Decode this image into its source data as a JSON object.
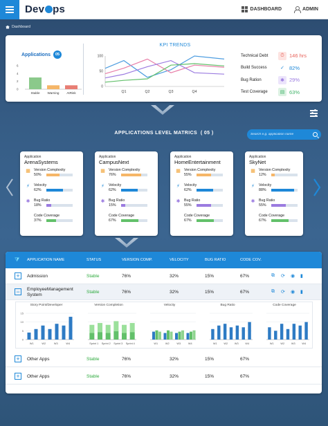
{
  "brand": {
    "name_part1": "Dev",
    "name_part2": "ps"
  },
  "topnav": {
    "dashboard": "DASHBOARD",
    "admin": "ADMIN"
  },
  "breadcrumb": "Dashboard",
  "applications_summary": {
    "title": "Applications",
    "count": "05",
    "yticks": [
      "6",
      "4",
      "2",
      "0"
    ],
    "categories": [
      "Stable",
      "Warning",
      "AtRisk"
    ],
    "values": [
      3,
      1,
      1
    ],
    "colors": [
      "#8bc98b",
      "#f5b668",
      "#e87e74"
    ]
  },
  "kpi_trends": {
    "title": "KPI TRENDS",
    "categories": [
      "Q1",
      "Q2",
      "Q3",
      "Q4"
    ],
    "yticks": [
      "100",
      "50",
      "0"
    ],
    "series": [
      {
        "values": [
          85,
          30,
          55,
          100
        ],
        "color": "#4d9de0"
      },
      {
        "values": [
          60,
          90,
          45,
          70
        ],
        "color": "#e87ea8"
      },
      {
        "values": [
          40,
          65,
          85,
          45
        ],
        "color": "#9b7be0"
      },
      {
        "values": [
          20,
          25,
          70,
          75
        ],
        "color": "#62c06a"
      }
    ]
  },
  "kpi_metrics": [
    {
      "label": "Technical Debt",
      "value": "146 hrs",
      "color": "#e8625a",
      "icon": "debt-icon",
      "glyph": "⏱",
      "bg": "#fde3e1"
    },
    {
      "label": "Build Success",
      "value": "82%",
      "color": "#1e88d8",
      "icon": "check-icon",
      "glyph": "✓",
      "bg": "#ffffff"
    },
    {
      "label": "Bug Ration",
      "value": "29%",
      "color": "#9b7be0",
      "icon": "bug-icon",
      "glyph": "✱",
      "bg": "#ece4fb"
    },
    {
      "label": "Test Coverage",
      "value": "63%",
      "color": "#41b36a",
      "icon": "coverage-icon",
      "glyph": "▤",
      "bg": "#ddf2e3"
    }
  ],
  "section_title": "APPLICATIONS LEVEL MATRICS",
  "section_count": "( 05 )",
  "search": {
    "placeholder": "Search e.g. application name"
  },
  "app_cards": [
    {
      "label": "Application",
      "name": "ArenaSystems",
      "metrics": [
        {
          "label": "Version Complexity",
          "value": "50%",
          "pct": 50,
          "color": "#f5b668",
          "icon": "calendar-icon",
          "glyph": "▦",
          "icolor": "#f0a030"
        },
        {
          "label": "Velocity",
          "value": "62%",
          "pct": 62,
          "color": "#1e88d8",
          "icon": "bolt-icon",
          "glyph": "⚡",
          "icolor": "#1e88d8"
        },
        {
          "label": "Bug Ratio",
          "value": "18%",
          "pct": 18,
          "color": "#9b7be0",
          "icon": "bug-icon",
          "glyph": "✱",
          "icolor": "#9b7be0"
        },
        {
          "label": "Code Coverage",
          "value": "37%",
          "pct": 37,
          "color": "#62c06a",
          "icon": "code-icon",
          "glyph": "</>",
          "icolor": "#41b36a"
        }
      ]
    },
    {
      "label": "Application",
      "name": "CampusNext",
      "metrics": [
        {
          "label": "Version Complexity",
          "value": "76%",
          "pct": 76,
          "color": "#f5b668",
          "icon": "calendar-icon",
          "glyph": "▦",
          "icolor": "#f0a030"
        },
        {
          "label": "Velocity",
          "value": "62%",
          "pct": 62,
          "color": "#1e88d8",
          "icon": "bolt-icon",
          "glyph": "⚡",
          "icolor": "#1e88d8"
        },
        {
          "label": "Bug Ratio",
          "value": "15%",
          "pct": 15,
          "color": "#9b7be0",
          "icon": "bug-icon",
          "glyph": "✱",
          "icolor": "#9b7be0"
        },
        {
          "label": "Code Coverage",
          "value": "67%",
          "pct": 67,
          "color": "#62c06a",
          "icon": "code-icon",
          "glyph": "</>",
          "icolor": "#41b36a"
        }
      ]
    },
    {
      "label": "Application",
      "name": "HomeEntertainment",
      "metrics": [
        {
          "label": "Version Complexity",
          "value": "55%",
          "pct": 55,
          "color": "#f5b668",
          "icon": "calendar-icon",
          "glyph": "▦",
          "icolor": "#f0a030"
        },
        {
          "label": "Velocity",
          "value": "62%",
          "pct": 62,
          "color": "#1e88d8",
          "icon": "bolt-icon",
          "glyph": "⚡",
          "icolor": "#1e88d8"
        },
        {
          "label": "Bug Ratio",
          "value": "55%",
          "pct": 55,
          "color": "#9b7be0",
          "icon": "bug-icon",
          "glyph": "✱",
          "icolor": "#9b7be0"
        },
        {
          "label": "Code Coverage",
          "value": "67%",
          "pct": 67,
          "color": "#62c06a",
          "icon": "code-icon",
          "glyph": "</>",
          "icolor": "#41b36a"
        }
      ]
    },
    {
      "label": "Application",
      "name": "SkyNet",
      "metrics": [
        {
          "label": "Version Complexity",
          "value": "12%",
          "pct": 12,
          "color": "#f5b668",
          "icon": "calendar-icon",
          "glyph": "▦",
          "icolor": "#f0a030"
        },
        {
          "label": "Velocity",
          "value": "88%",
          "pct": 88,
          "color": "#1e88d8",
          "icon": "bolt-icon",
          "glyph": "⚡",
          "icolor": "#1e88d8"
        },
        {
          "label": "Bug Ratio",
          "value": "55%",
          "pct": 55,
          "color": "#9b7be0",
          "icon": "bug-icon",
          "glyph": "✱",
          "icolor": "#9b7be0"
        },
        {
          "label": "Code Coverage",
          "value": "67%",
          "pct": 67,
          "color": "#62c06a",
          "icon": "code-icon",
          "glyph": "</>",
          "icolor": "#41b36a"
        }
      ]
    }
  ],
  "table": {
    "headers": [
      "APPLICATION NAME",
      "STATUS",
      "VERSION COMP.",
      "VELOCITY",
      "BUG RATIO",
      "CODE COV."
    ],
    "rows": [
      {
        "toggle": "+",
        "name": "Admission",
        "status": "Stable",
        "version": "76%",
        "velocity": "32%",
        "bug": "15%",
        "coverage": "67%"
      },
      {
        "toggle": "−",
        "name": "EmployeeManagement",
        "name2": "System",
        "status": "Stable",
        "version": "76%",
        "velocity": "32%",
        "bug": "15%",
        "coverage": "67%"
      },
      {
        "toggle": "+",
        "name": "Other Apps",
        "status": "Stable",
        "version": "76%",
        "velocity": "32%",
        "bug": "15%",
        "coverage": "67%"
      },
      {
        "toggle": "+",
        "name": "Other Apps",
        "status": "Stable",
        "version": "76%",
        "velocity": "32%",
        "bug": "15%",
        "coverage": "67%"
      }
    ],
    "sub_charts": [
      {
        "title": "Story Point/Developer",
        "type": "bar",
        "yticks": [
          "15",
          "10",
          "5",
          "0"
        ],
        "xlabels": [
          "W1",
          "W2",
          "W3",
          "W4"
        ],
        "values": [
          4,
          6,
          8,
          6,
          9,
          8,
          13
        ],
        "colors": [
          "#2e7bc4"
        ]
      },
      {
        "title": "Version Completion",
        "type": "stacked",
        "xlabels": [
          "Sprint 1",
          "Sprint 2",
          "Sprint 3",
          "Sprint 4"
        ],
        "values": [
          8,
          9,
          8,
          10,
          8,
          9
        ],
        "colors": [
          "#9be09b",
          "#62c06a"
        ]
      },
      {
        "title": "Velocity",
        "type": "grouped",
        "xlabels": [
          "W1",
          "W2",
          "W3",
          "W4"
        ],
        "values": [
          6,
          7,
          6,
          5,
          7,
          6,
          5,
          6,
          7,
          5,
          6,
          7
        ],
        "colors": [
          "#2e7bc4",
          "#62c06a",
          "#8fd48f"
        ]
      },
      {
        "title": "Bug Ratio",
        "type": "bar",
        "xlabels": [
          "W1",
          "W2",
          "W3",
          "W4"
        ],
        "values": [
          6,
          8,
          9,
          7,
          8,
          7,
          10
        ],
        "colors": [
          "#2e7bc4"
        ]
      },
      {
        "title": "Code Coverage",
        "type": "bar",
        "xlabels": [
          "W1",
          "W2",
          "W3",
          "W4"
        ],
        "values": [
          7,
          5,
          9,
          6,
          9,
          8,
          10
        ],
        "colors": [
          "#2e7bc4"
        ]
      }
    ]
  }
}
